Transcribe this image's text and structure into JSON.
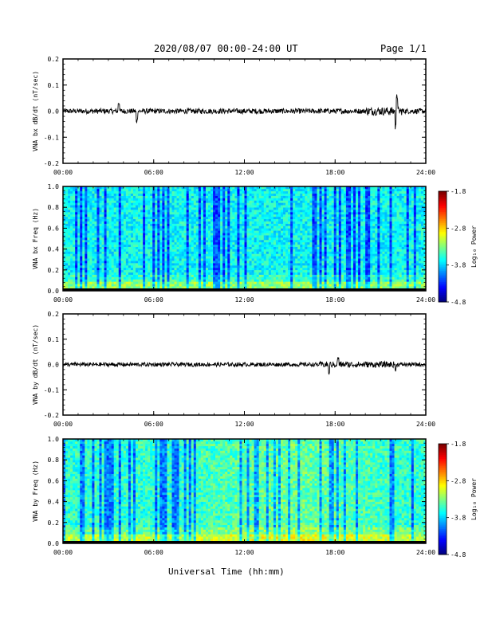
{
  "header": {
    "title": "2020/08/07  00:00-24:00 UT",
    "page": "Page 1/1"
  },
  "xlabel": "Universal Time (hh:mm)",
  "colorbar": {
    "label": "Log₁₀ Power",
    "ticks": [
      "-1.8",
      "-2.8",
      "-3.8",
      "-4.8"
    ],
    "range": [
      -4.8,
      -1.8
    ]
  },
  "chart_data": [
    {
      "type": "line",
      "ylabel": "VNA bx dB/dt (nT/sec)",
      "xlim": [
        0,
        24
      ],
      "ylim": [
        -0.2,
        0.2
      ],
      "x_ticks": [
        "00:00",
        "06:00",
        "12:00",
        "18:00",
        "24:00"
      ],
      "y_ticks": [
        "0.2",
        "0.1",
        "0.0",
        "-0.1",
        "-0.2"
      ],
      "series": [
        {
          "values_summary": {
            "baseline": 0.0,
            "typical_amplitude": 0.01,
            "spikes": [
              [
                3.7,
                0.04
              ],
              [
                4.9,
                -0.05
              ],
              [
                22.1,
                0.07
              ],
              [
                22.0,
                -0.08
              ]
            ]
          }
        }
      ]
    },
    {
      "type": "heatmap",
      "ylabel": "VNA bx Freq (Hz)",
      "xlim": [
        0,
        24
      ],
      "ylim": [
        0.0,
        1.0
      ],
      "x_ticks": [
        "00:00",
        "06:00",
        "12:00",
        "18:00",
        "24:00"
      ],
      "y_ticks": [
        "1.0",
        "0.8",
        "0.6",
        "0.4",
        "0.2",
        "0.0"
      ],
      "zlim": [
        -4.8,
        -1.8
      ]
    },
    {
      "type": "line",
      "ylabel": "VNA by dB/dt (nT/sec)",
      "xlim": [
        0,
        24
      ],
      "ylim": [
        -0.2,
        0.2
      ],
      "x_ticks": [
        "00:00",
        "06:00",
        "12:00",
        "18:00",
        "24:00"
      ],
      "y_ticks": [
        "0.2",
        "0.1",
        "0.0",
        "-0.1",
        "-0.2"
      ],
      "series": [
        {
          "values_summary": {
            "baseline": 0.0,
            "typical_amplitude": 0.008,
            "spikes": [
              [
                18.2,
                0.03
              ],
              [
                17.6,
                -0.04
              ],
              [
                22.0,
                -0.03
              ]
            ]
          }
        }
      ]
    },
    {
      "type": "heatmap",
      "ylabel": "VNA by Freq (Hz)",
      "xlim": [
        0,
        24
      ],
      "ylim": [
        0.0,
        1.0
      ],
      "x_ticks": [
        "00:00",
        "06:00",
        "12:00",
        "18:00",
        "24:00"
      ],
      "y_ticks": [
        "1.0",
        "0.8",
        "0.6",
        "0.4",
        "0.2",
        "0.0"
      ],
      "zlim": [
        -4.8,
        -1.8
      ]
    }
  ]
}
